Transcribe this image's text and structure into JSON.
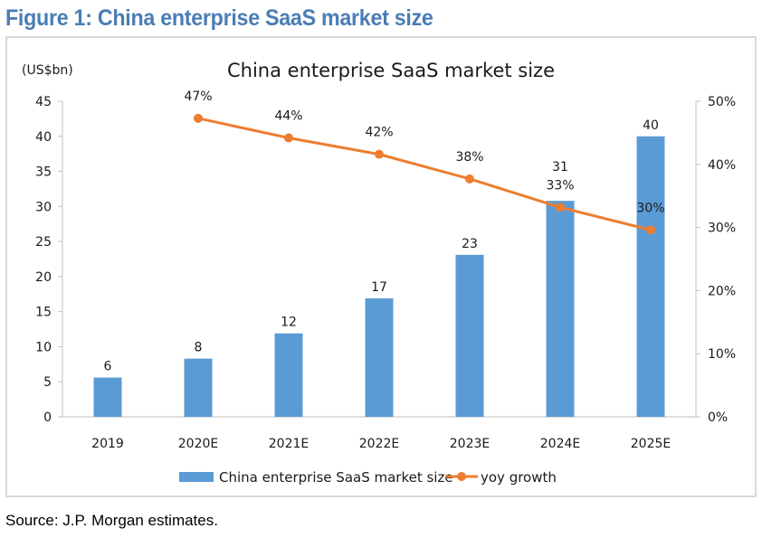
{
  "figure": {
    "title": "Figure 1: China enterprise SaaS market size",
    "source": "Source: J.P. Morgan estimates."
  },
  "colors": {
    "bar": "#5b9bd5",
    "line": "#ed7d31",
    "title": "#4a7db5",
    "axis": "#bfbfbf"
  },
  "chart_data": {
    "type": "bar",
    "title": "China enterprise SaaS market size",
    "ylabel": "(US$bn)",
    "xlabel": "",
    "categories": [
      "2019",
      "2020E",
      "2021E",
      "2022E",
      "2023E",
      "2024E",
      "2025E"
    ],
    "series": [
      {
        "name": "China enterprise SaaS market size",
        "type": "bar",
        "axis": "left",
        "values": [
          5.6,
          8.3,
          11.9,
          16.9,
          23.1,
          30.8,
          40.0
        ],
        "labels": [
          "6",
          "8",
          "12",
          "17",
          "23",
          "31",
          "40"
        ]
      },
      {
        "name": "yoy growth",
        "type": "line",
        "axis": "right",
        "values": [
          null,
          47.3,
          44.2,
          41.6,
          37.7,
          33.2,
          29.6
        ],
        "labels": [
          "",
          "47%",
          "44%",
          "42%",
          "38%",
          "33%",
          "30%"
        ]
      }
    ],
    "ylim": [
      0,
      45
    ],
    "yticks": [
      "0",
      "5",
      "10",
      "15",
      "20",
      "25",
      "30",
      "35",
      "40",
      "45"
    ],
    "y2lim": [
      0,
      50
    ],
    "y2ticks": [
      "0%",
      "10%",
      "20%",
      "30%",
      "40%",
      "50%"
    ],
    "grid": false,
    "legend": "bottom"
  }
}
